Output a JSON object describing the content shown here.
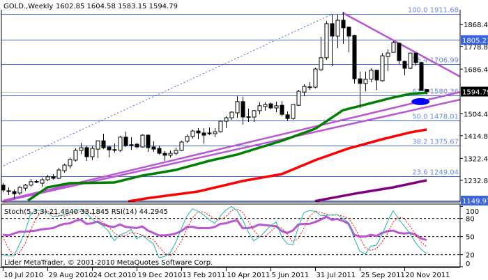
{
  "header": {
    "symbol": "GOLD.,Weekly",
    "ohlc_text": "1602.85 1604.58 1583.15 1594.79"
  },
  "indicator_header": "Stoch(5,3,3) 21.4840 33.1845  RSI(14) 44.2945",
  "footer": "Lider MetaTrader, © 2001-2010 MetaQuotes Software Corp.",
  "colors": {
    "bull_body": "#ffffff",
    "bear_body": "#000000",
    "level_line": "#3a64e0",
    "fib_text": "#6a8ae6",
    "bid_line": "#c0c0c0",
    "trendline": "#ba55d3",
    "ma_fast": "#008000",
    "ma_mid": "#ff0000",
    "ma_slow": "#800080",
    "stoch_main": "#20b2aa",
    "stoch_signal": "#ff0000",
    "rsi": "#ba55d3",
    "highlight": "#0000ff"
  },
  "chart_data": {
    "type": "candlestick",
    "title": "GOLD.,Weekly",
    "ylim": [
      1149.97,
      1911.68
    ],
    "grid": false,
    "ohlc": [
      [
        1213,
        1221,
        1184,
        1193
      ],
      [
        1190,
        1204,
        1173,
        1190
      ],
      [
        1187,
        1196,
        1159,
        1178
      ],
      [
        1181,
        1210,
        1173,
        1204
      ],
      [
        1201,
        1218,
        1190,
        1213
      ],
      [
        1213,
        1238,
        1207,
        1227
      ],
      [
        1227,
        1235,
        1221,
        1228
      ],
      [
        1221,
        1244,
        1207,
        1235
      ],
      [
        1235,
        1255,
        1230,
        1247
      ],
      [
        1247,
        1258,
        1235,
        1241
      ],
      [
        1241,
        1284,
        1238,
        1275
      ],
      [
        1272,
        1301,
        1264,
        1295
      ],
      [
        1292,
        1326,
        1281,
        1318
      ],
      [
        1315,
        1363,
        1309,
        1355
      ],
      [
        1355,
        1386,
        1340,
        1366
      ],
      [
        1366,
        1375,
        1312,
        1329
      ],
      [
        1329,
        1372,
        1315,
        1363
      ],
      [
        1360,
        1394,
        1323,
        1394
      ],
      [
        1394,
        1423,
        1360,
        1366
      ],
      [
        1369,
        1375,
        1326,
        1357
      ],
      [
        1357,
        1383,
        1346,
        1358
      ],
      [
        1355,
        1414,
        1349,
        1409
      ],
      [
        1409,
        1431,
        1369,
        1375
      ],
      [
        1377,
        1409,
        1357,
        1378
      ],
      [
        1380,
        1386,
        1363,
        1369
      ],
      [
        1369,
        1420,
        1366,
        1417
      ],
      [
        1417,
        1420,
        1349,
        1366
      ],
      [
        1369,
        1392,
        1349,
        1360
      ],
      [
        1363,
        1375,
        1338,
        1343
      ],
      [
        1343,
        1352,
        1312,
        1335
      ],
      [
        1335,
        1355,
        1326,
        1343
      ],
      [
        1343,
        1366,
        1335,
        1355
      ],
      [
        1355,
        1394,
        1352,
        1389
      ],
      [
        1392,
        1420,
        1386,
        1412
      ],
      [
        1412,
        1440,
        1403,
        1434
      ],
      [
        1434,
        1446,
        1400,
        1426
      ],
      [
        1426,
        1446,
        1383,
        1417
      ],
      [
        1425,
        1448,
        1417,
        1426
      ],
      [
        1423,
        1446,
        1409,
        1431
      ],
      [
        1431,
        1477,
        1428,
        1474
      ],
      [
        1474,
        1494,
        1446,
        1488
      ],
      [
        1488,
        1514,
        1480,
        1511
      ],
      [
        1508,
        1576,
        1488,
        1554
      ],
      [
        1554,
        1574,
        1460,
        1491
      ],
      [
        1491,
        1525,
        1471,
        1492
      ],
      [
        1491,
        1519,
        1471,
        1517
      ],
      [
        1517,
        1551,
        1502,
        1537
      ],
      [
        1534,
        1551,
        1517,
        1542
      ],
      [
        1545,
        1551,
        1522,
        1528
      ],
      [
        1528,
        1554,
        1511,
        1537
      ],
      [
        1539,
        1556,
        1494,
        1502
      ],
      [
        1500,
        1514,
        1477,
        1485
      ],
      [
        1485,
        1542,
        1480,
        1542
      ],
      [
        1539,
        1602,
        1536,
        1596
      ],
      [
        1593,
        1625,
        1576,
        1616
      ],
      [
        1613,
        1633,
        1602,
        1614
      ],
      [
        1613,
        1692,
        1608,
        1687
      ],
      [
        1684,
        1818,
        1679,
        1733
      ],
      [
        1733,
        1883,
        1724,
        1872
      ],
      [
        1872,
        1909,
        1699,
        1821
      ],
      [
        1821,
        1909,
        1772,
        1886
      ],
      [
        1886,
        1920,
        1790,
        1855
      ],
      [
        1858,
        1858,
        1755,
        1821
      ],
      [
        1824,
        1827,
        1628,
        1647
      ],
      [
        1647,
        1676,
        1528,
        1628
      ],
      [
        1628,
        1676,
        1596,
        1645
      ],
      [
        1645,
        1690,
        1633,
        1682
      ],
      [
        1682,
        1684,
        1602,
        1642
      ],
      [
        1639,
        1752,
        1636,
        1741
      ],
      [
        1738,
        1767,
        1679,
        1752
      ],
      [
        1755,
        1801,
        1755,
        1795
      ],
      [
        1792,
        1795,
        1707,
        1721
      ],
      [
        1718,
        1721,
        1662,
        1690
      ],
      [
        1690,
        1752,
        1687,
        1752
      ],
      [
        1752,
        1752,
        1701,
        1713
      ],
      [
        1713,
        1716,
        1599,
        1599
      ],
      [
        1602.85,
        1604.58,
        1583.15,
        1594.79
      ]
    ],
    "x_ticks": [
      {
        "index": 0,
        "label": "10 Jul 2010"
      },
      {
        "index": 8,
        "label": "29 Aug 2010"
      },
      {
        "index": 16,
        "label": "24 Oct 2010"
      },
      {
        "index": 24,
        "label": "19 Dec 2010"
      },
      {
        "index": 32,
        "label": "13 Feb 2011"
      },
      {
        "index": 40,
        "label": "10 Apr 2011"
      },
      {
        "index": 48,
        "label": "5 Jun 2011"
      },
      {
        "index": 56,
        "label": "31 Jul 2011"
      },
      {
        "index": 64,
        "label": "25 Sep 2011"
      },
      {
        "index": 72,
        "label": "20 Nov 2011"
      }
    ],
    "y_ticks": [
      "1868.40",
      "1778.80",
      "1686.40",
      "1504.40",
      "1414.80",
      "1322.40",
      "1232.80"
    ],
    "price_markers": [
      {
        "label": "1805.23",
        "value": 1805.23,
        "style": "blue"
      },
      {
        "label": "1594.79",
        "value": 1594.79,
        "style": "black"
      },
      {
        "label": "1149.97",
        "value": 1149.97,
        "style": "blue"
      }
    ],
    "horizontal_lines": [
      1805.23,
      1149.97
    ],
    "bid_line": 1594.79,
    "fib_levels": [
      {
        "label": "100.0 1911.68",
        "value": 1911.68
      },
      {
        "label": "76.4 1706.99",
        "value": 1706.99
      },
      {
        "label": "61.8 1580.36",
        "value": 1580.36
      },
      {
        "label": "50.0 1478.01",
        "value": 1478.01
      },
      {
        "label": "38.2 1375.67",
        "value": 1375.67
      },
      {
        "label": "23.6 1249.04",
        "value": 1249.04
      }
    ],
    "moving_averages": [
      {
        "color_key": "ma_fast",
        "points": [
          [
            4.5,
            1150
          ],
          [
            8,
            1204
          ],
          [
            12,
            1221
          ],
          [
            20,
            1224
          ],
          [
            25,
            1252
          ],
          [
            31,
            1275
          ],
          [
            37,
            1312
          ],
          [
            42,
            1338
          ],
          [
            50,
            1394
          ],
          [
            56,
            1443
          ],
          [
            61,
            1519
          ],
          [
            64,
            1536
          ],
          [
            70,
            1571
          ],
          [
            73,
            1585
          ],
          [
            76,
            1590
          ]
        ]
      },
      {
        "color_key": "ma_mid",
        "points": [
          [
            22.5,
            1147
          ],
          [
            26,
            1160
          ],
          [
            35,
            1187
          ],
          [
            43,
            1230
          ],
          [
            50,
            1258
          ],
          [
            56,
            1315
          ],
          [
            62,
            1363
          ],
          [
            68,
            1400
          ],
          [
            73,
            1428
          ],
          [
            76,
            1440
          ]
        ]
      },
      {
        "color_key": "ma_slow",
        "points": [
          [
            56,
            1148
          ],
          [
            63,
            1178
          ],
          [
            70,
            1204
          ],
          [
            76,
            1233
          ]
        ]
      }
    ],
    "trendlines": [
      {
        "style": "solid",
        "color_key": "trendline",
        "from": [
          0.1,
          1150
        ],
        "to": [
          82,
          1593
        ]
      },
      {
        "style": "solid",
        "color_key": "trendline",
        "from": [
          0.1,
          1147
        ],
        "to": [
          82,
          1562
        ]
      },
      {
        "style": "solid",
        "color_key": "trendline",
        "from": [
          60.9,
          1917
        ],
        "to": [
          82,
          1656
        ]
      },
      {
        "style": "dotted",
        "color_key": "level_line",
        "from": [
          0.1,
          1292
        ],
        "to": [
          58.9,
          1909
        ]
      }
    ],
    "highlight_ellipse": {
      "center": [
        74.9,
        1554
      ]
    },
    "indicators": {
      "levels": [
        100,
        80,
        50,
        20,
        0
      ],
      "dashed_levels": [
        80,
        50,
        20
      ],
      "stoch_k": [
        20,
        18,
        18,
        37,
        58,
        88,
        94,
        92,
        89,
        83,
        84,
        86,
        89,
        92,
        95,
        89,
        79,
        73,
        68,
        58,
        43,
        53,
        56,
        62,
        46,
        52,
        45,
        38,
        15,
        17,
        23,
        40,
        63,
        84,
        96,
        92,
        86,
        78,
        72,
        84,
        94,
        100,
        93,
        78,
        58,
        43,
        49,
        58,
        68,
        74,
        50,
        38,
        36,
        66,
        90,
        93,
        92,
        85,
        85,
        86,
        86,
        80,
        73,
        47,
        26,
        21,
        34,
        36,
        53,
        75,
        93,
        79,
        67,
        55,
        40,
        29,
        21.48
      ],
      "stoch_d": [
        50,
        30,
        19,
        24,
        38,
        61,
        80,
        91,
        92,
        88,
        85,
        84,
        86,
        89,
        92,
        92,
        88,
        80,
        73,
        66,
        56,
        51,
        51,
        57,
        55,
        53,
        48,
        45,
        33,
        23,
        18,
        27,
        42,
        62,
        81,
        91,
        91,
        85,
        79,
        78,
        83,
        93,
        96,
        90,
        76,
        60,
        50,
        50,
        58,
        67,
        64,
        54,
        41,
        47,
        64,
        83,
        92,
        90,
        87,
        85,
        86,
        84,
        80,
        67,
        49,
        31,
        27,
        30,
        41,
        55,
        74,
        82,
        80,
        67,
        54,
        41,
        33.18
      ],
      "rsi": [
        53,
        52,
        55,
        58,
        58,
        59,
        60,
        62,
        63,
        64,
        68,
        71,
        72,
        76,
        78,
        71,
        72,
        75,
        70,
        67,
        66,
        70,
        66,
        65,
        64,
        67,
        60,
        56,
        52,
        52,
        53,
        55,
        59,
        66,
        66,
        64,
        64,
        64,
        66,
        71,
        72,
        75,
        77,
        64,
        64,
        66,
        70,
        69,
        68,
        67,
        59,
        56,
        60,
        70,
        71,
        71,
        74,
        78,
        83,
        78,
        79,
        76,
        71,
        53,
        50,
        50,
        53,
        51,
        56,
        59,
        60,
        56,
        55,
        56,
        53,
        47,
        44.29
      ]
    }
  }
}
